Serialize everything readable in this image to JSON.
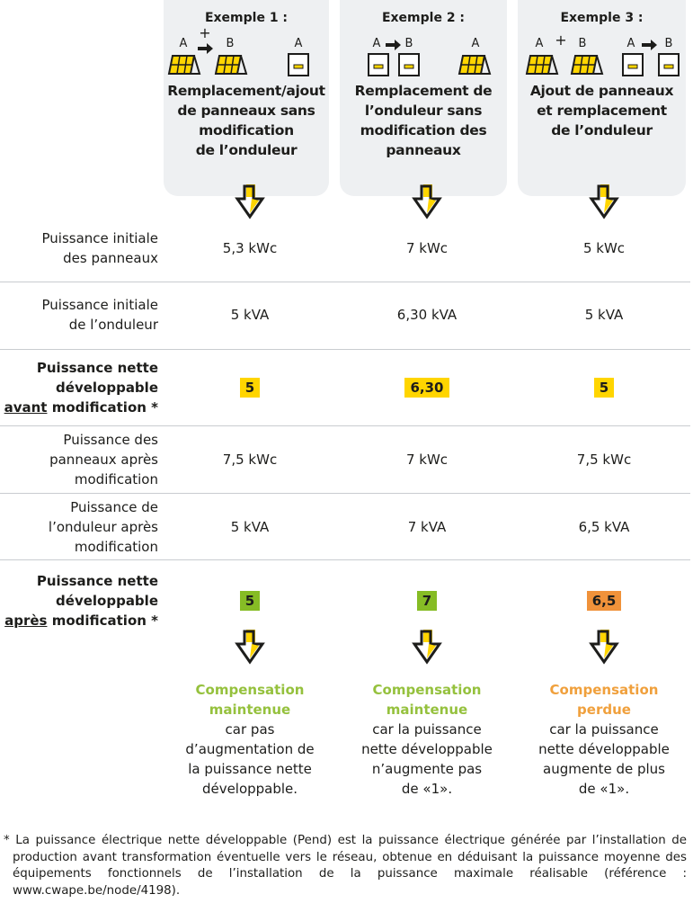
{
  "colors": {
    "yellow": "#ffd500",
    "green": "#86bc25",
    "orange": "#f0923a",
    "green_text": "#95c13d",
    "orange_text": "#f0a03c",
    "box_bg": "#eef0f2"
  },
  "examples": [
    {
      "title": "Exemple 1 :",
      "icons": "panel A + arrow panel B, inverter A",
      "icon_labels": [
        "A",
        "+",
        "B",
        "A"
      ],
      "desc": [
        "Remplacement/ajout",
        "de panneaux sans",
        "modification",
        "de l’onduleur"
      ]
    },
    {
      "title": "Exemple 2 :",
      "icons": "inverter A arrow inverter B, panel A",
      "icon_labels": [
        "A",
        "B",
        "A"
      ],
      "desc": [
        "Remplacement de",
        "l’onduleur sans",
        "modification des",
        "panneaux"
      ]
    },
    {
      "title": "Exemple 3 :",
      "icons": "panel A + panel B, inverter A arrow inverter B",
      "icon_labels": [
        "A",
        "+",
        "B",
        "A",
        "B"
      ],
      "desc": [
        "Ajout de panneaux",
        "et remplacement",
        "de l’onduleur"
      ]
    }
  ],
  "rows": [
    {
      "label": [
        "Puissance initiale",
        "des panneaux"
      ],
      "values": [
        "5,3 kWc",
        "7 kWc",
        "5 kWc"
      ]
    },
    {
      "label": [
        "Puissance initiale",
        "de l’onduleur"
      ],
      "values": [
        "5 kVA",
        "6,30 kVA",
        "5 kVA"
      ]
    },
    {
      "label": [
        "Puissance nette",
        "développable"
      ],
      "label_underlined": "avant",
      "label_suffix": " modification *",
      "values": [
        "5",
        "6,30",
        "5"
      ],
      "highlight": "yellow"
    },
    {
      "label": [
        "Puissance des",
        "panneaux après",
        "modification"
      ],
      "values": [
        "7,5 kWc",
        "7 kWc",
        "7,5 kWc"
      ]
    },
    {
      "label": [
        "Puissance de",
        "l’onduleur après",
        "modification"
      ],
      "values": [
        "5 kVA",
        "7 kVA",
        "6,5 kVA"
      ]
    },
    {
      "label": [
        "Puissance nette",
        "développable"
      ],
      "label_underlined": "après",
      "label_suffix": " modification *",
      "values": [
        "5",
        "7",
        "6,5"
      ],
      "highlight": [
        "green",
        "green",
        "orange"
      ]
    }
  ],
  "results": [
    {
      "status": [
        "Compensation",
        "maintenue"
      ],
      "status_color": "green",
      "reason": [
        "car pas",
        "d’augmentation de",
        "la puissance nette",
        "développable."
      ]
    },
    {
      "status": [
        "Compensation",
        "maintenue"
      ],
      "status_color": "green",
      "reason": [
        "car la puissance",
        "nette développable",
        "n’augmente pas",
        "de «1»."
      ]
    },
    {
      "status": [
        "Compensation",
        "perdue"
      ],
      "status_color": "orange",
      "reason": [
        "car la puissance",
        "nette développable",
        "augmente de plus",
        "de «1»."
      ]
    }
  ],
  "footnote": "* La puissance électrique nette développable (Pend) est la puissance électrique générée par l’installation de production avant transformation éventuelle vers le réseau, obtenue en déduisant la puissance moyenne des équipements fonctionnels de l’installation de la puissance maximale réalisable (référence : www.cwape.be/node/4198)."
}
